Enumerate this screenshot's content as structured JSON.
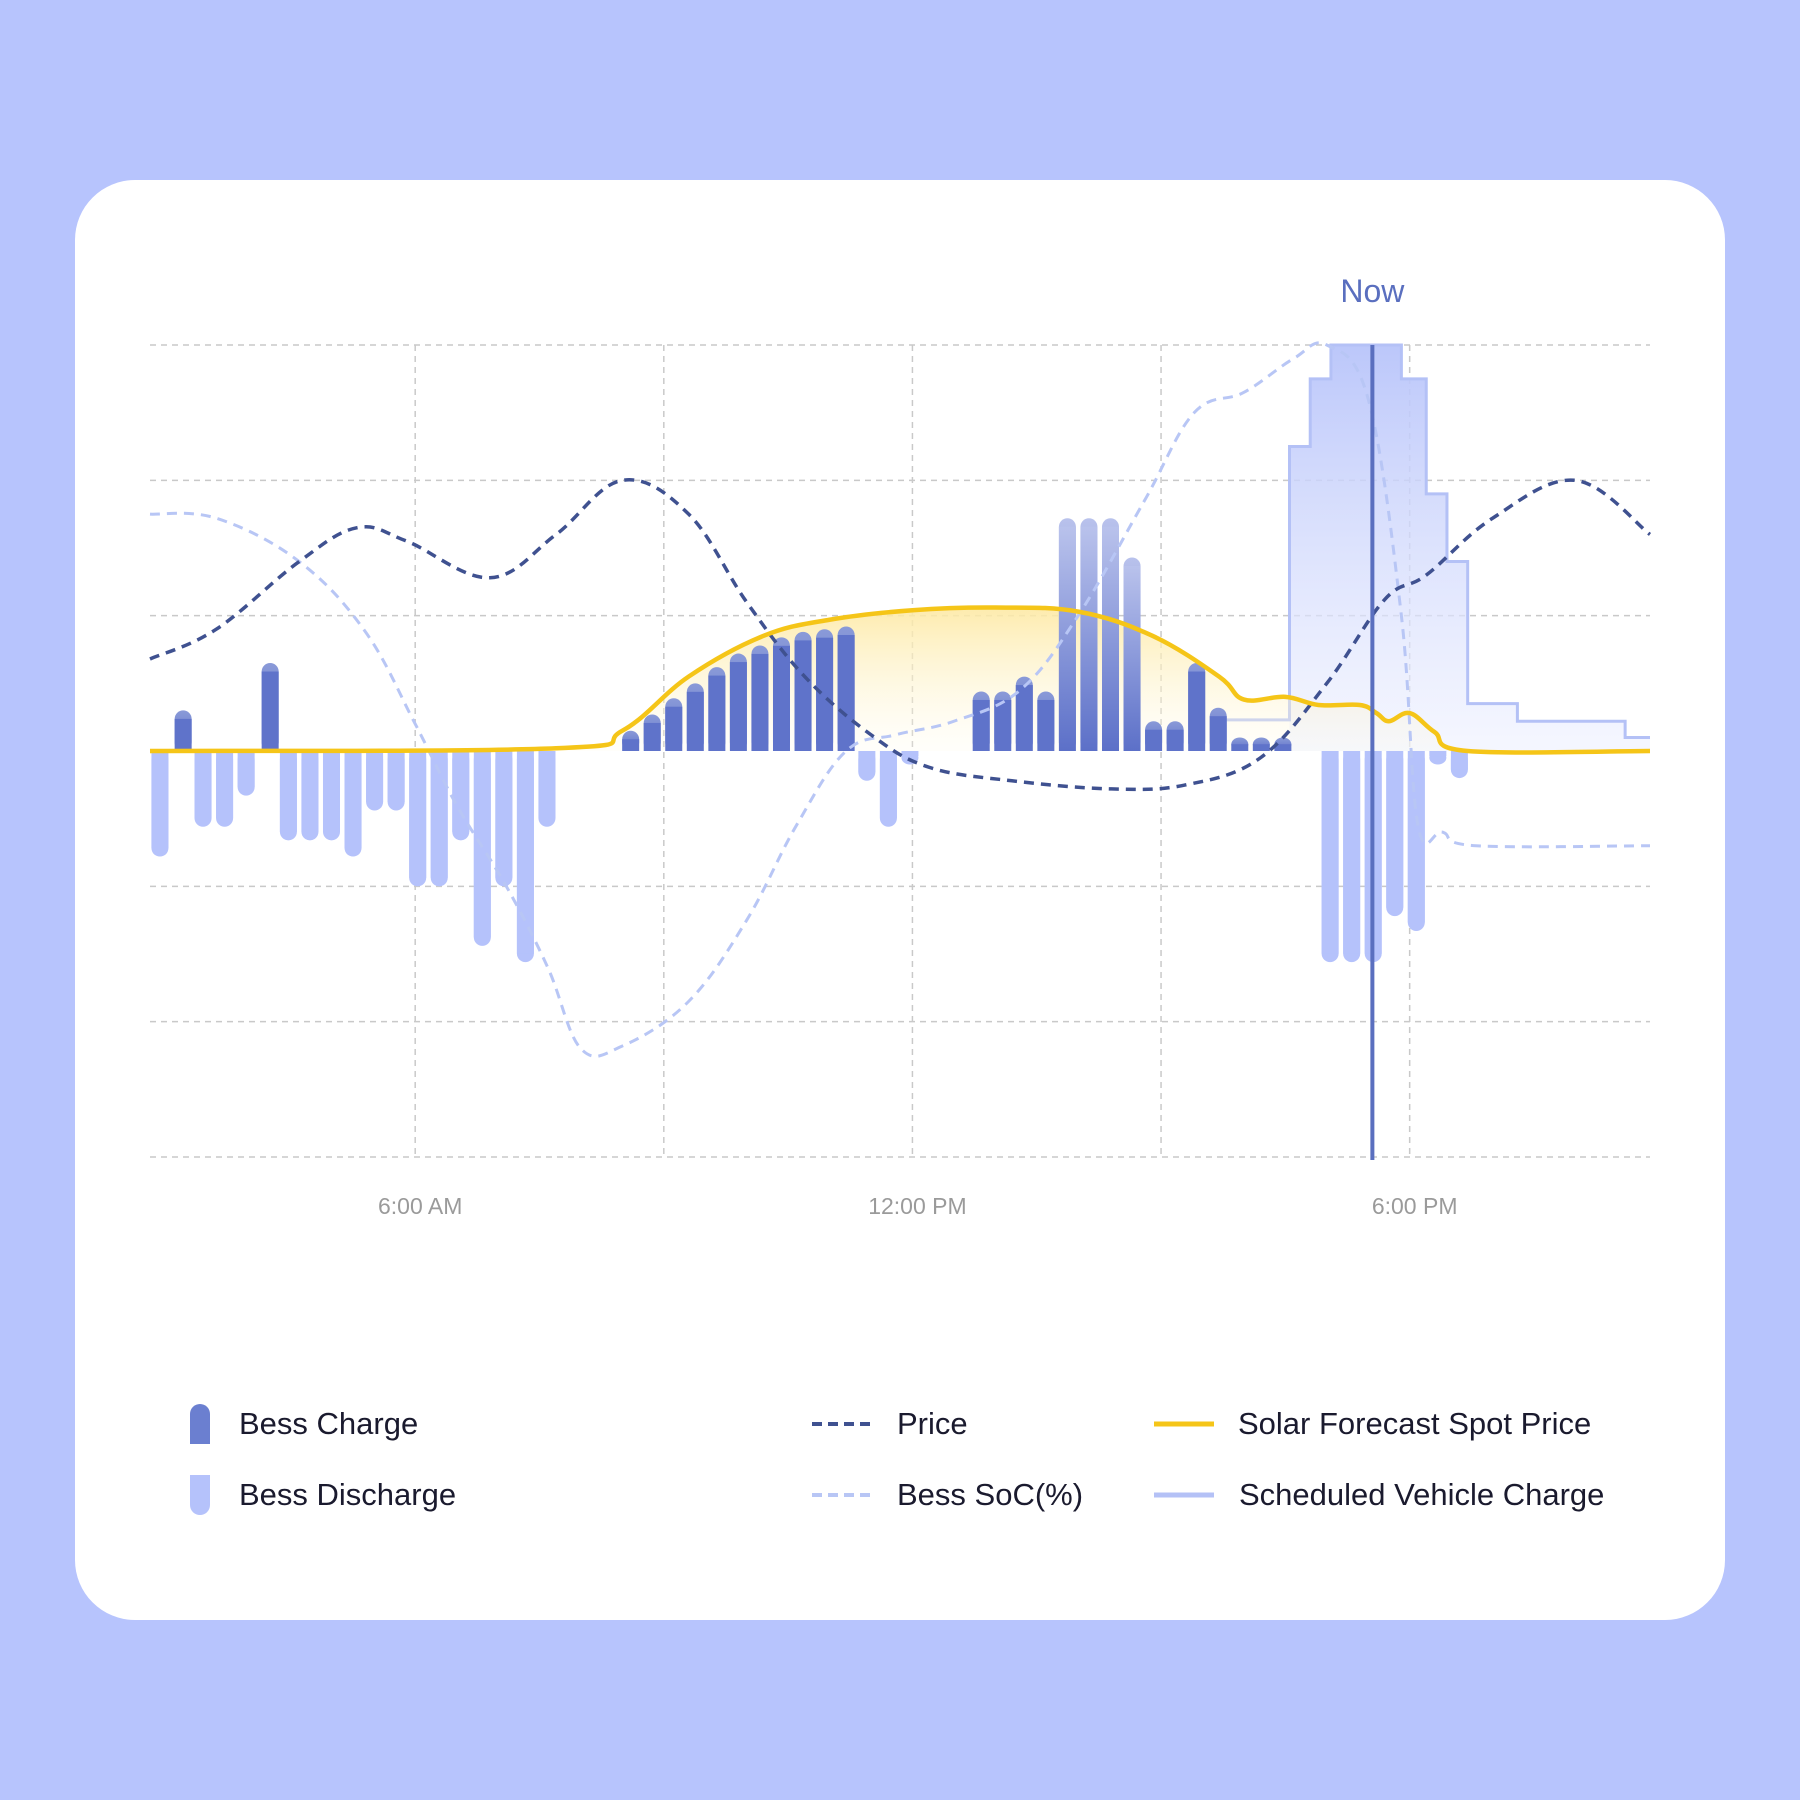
{
  "colors": {
    "background": "#b7c4fd",
    "card": "#ffffff",
    "charge": "#6b7fd0",
    "discharge": "#b5c2fb",
    "price": "#3f5190",
    "soc": "#b8c6f5",
    "solar": "#f5c518",
    "vehicle": "#b4c1f6",
    "now": "#5a6fbf"
  },
  "chart_data": {
    "type": "bar",
    "now_label": "Now",
    "now_x": 17.55,
    "x_ticks": [
      {
        "x": 6,
        "label": "6:00 AM"
      },
      {
        "x": 12,
        "label": "12:00 PM"
      },
      {
        "x": 18,
        "label": "6:00 PM"
      }
    ],
    "xlim": [
      2.8,
      20.9
    ],
    "ylim": [
      -3,
      3
    ],
    "grid": true,
    "bess_charge": {
      "name": "Bess Charge",
      "x": [
        3.2,
        4.25,
        8.6,
        8.86,
        9.12,
        9.38,
        9.64,
        9.9,
        10.16,
        10.42,
        10.68,
        10.94,
        11.2,
        12.83,
        13.09,
        13.35,
        13.61,
        13.87,
        14.13,
        14.39,
        14.65,
        14.91,
        15.17,
        15.43,
        15.69,
        15.95,
        16.21,
        16.47
      ],
      "values": [
        0.3,
        0.65,
        0.15,
        0.27,
        0.39,
        0.5,
        0.62,
        0.72,
        0.78,
        0.84,
        0.88,
        0.9,
        0.92,
        0.44,
        0.44,
        0.55,
        0.44,
        1.72,
        1.72,
        1.72,
        1.43,
        0.22,
        0.22,
        0.65,
        0.32,
        0.1,
        0.1,
        0.1
      ]
    },
    "bess_discharge": {
      "name": "Bess Discharge",
      "x": [
        2.92,
        3.44,
        3.7,
        3.96,
        4.47,
        4.73,
        4.99,
        5.25,
        5.51,
        5.77,
        6.03,
        6.29,
        6.55,
        6.81,
        7.07,
        7.33,
        7.59,
        11.45,
        11.71,
        11.97,
        17.04,
        17.3,
        17.56,
        17.82,
        18.08,
        18.34,
        18.6
      ],
      "values": [
        -0.78,
        -0.56,
        -0.56,
        -0.33,
        -0.66,
        -0.66,
        -0.66,
        -0.78,
        -0.44,
        -0.44,
        -1.0,
        -1.0,
        -0.66,
        -1.44,
        -1.0,
        -1.56,
        -0.56,
        -0.22,
        -0.56,
        -0.1,
        -1.56,
        -1.56,
        -1.56,
        -1.22,
        -1.33,
        -0.1,
        -0.2
      ]
    },
    "price": {
      "name": "Price",
      "points": [
        [
          2.8,
          0.68
        ],
        [
          3.6,
          0.9
        ],
        [
          4.6,
          1.4
        ],
        [
          5.3,
          1.65
        ],
        [
          5.9,
          1.55
        ],
        [
          6.9,
          1.28
        ],
        [
          7.7,
          1.6
        ],
        [
          8.5,
          2.0
        ],
        [
          9.3,
          1.75
        ],
        [
          10.0,
          1.1
        ],
        [
          10.7,
          0.55
        ],
        [
          11.5,
          0.12
        ],
        [
          12.2,
          -0.12
        ],
        [
          13.2,
          -0.22
        ],
        [
          14.4,
          -0.28
        ],
        [
          15.3,
          -0.25
        ],
        [
          16.2,
          -0.05
        ],
        [
          17.0,
          0.5
        ],
        [
          17.7,
          1.12
        ],
        [
          18.2,
          1.3
        ],
        [
          19.0,
          1.72
        ],
        [
          20.0,
          2.0
        ],
        [
          20.9,
          1.6
        ]
      ]
    },
    "soc": {
      "name": "Bess SoC(%)",
      "points": [
        [
          2.8,
          1.75
        ],
        [
          3.6,
          1.72
        ],
        [
          4.6,
          1.4
        ],
        [
          5.4,
          0.88
        ],
        [
          6.0,
          0.2
        ],
        [
          6.5,
          -0.4
        ],
        [
          7.1,
          -1.0
        ],
        [
          7.6,
          -1.6
        ],
        [
          8.0,
          -2.2
        ],
        [
          8.5,
          -2.18
        ],
        [
          9.3,
          -1.85
        ],
        [
          10.0,
          -1.25
        ],
        [
          10.6,
          -0.55
        ],
        [
          11.2,
          0.0
        ],
        [
          11.8,
          0.12
        ],
        [
          12.5,
          0.22
        ],
        [
          13.3,
          0.45
        ],
        [
          14.0,
          1.0
        ],
        [
          14.8,
          1.85
        ],
        [
          15.4,
          2.5
        ],
        [
          16.0,
          2.65
        ],
        [
          16.6,
          2.9
        ],
        [
          17.0,
          3.0
        ],
        [
          17.5,
          2.6
        ],
        [
          17.9,
          1.0
        ],
        [
          18.1,
          -0.55
        ],
        [
          18.4,
          -0.6
        ],
        [
          18.8,
          -0.7
        ],
        [
          20.9,
          -0.7
        ]
      ]
    },
    "solar": {
      "name": "Solar Forecast Spot Price",
      "points": [
        [
          2.8,
          0.0
        ],
        [
          7.7,
          0.02
        ],
        [
          8.5,
          0.15
        ],
        [
          9.3,
          0.55
        ],
        [
          10.2,
          0.85
        ],
        [
          11.0,
          0.97
        ],
        [
          12.0,
          1.04
        ],
        [
          13.0,
          1.06
        ],
        [
          14.0,
          1.03
        ],
        [
          14.9,
          0.85
        ],
        [
          15.7,
          0.55
        ],
        [
          16.0,
          0.38
        ],
        [
          16.5,
          0.4
        ],
        [
          16.9,
          0.34
        ],
        [
          17.4,
          0.34
        ],
        [
          17.6,
          0.28
        ],
        [
          17.75,
          0.22
        ],
        [
          18.0,
          0.28
        ],
        [
          18.3,
          0.14
        ],
        [
          18.7,
          0.0
        ],
        [
          20.9,
          0.0
        ]
      ]
    },
    "vehicle": {
      "name": "Scheduled Vehicle Charge",
      "steps": [
        [
          15.6,
          0.23
        ],
        [
          16.55,
          2.25
        ],
        [
          16.8,
          2.75
        ],
        [
          17.05,
          3.0
        ],
        [
          17.9,
          2.75
        ],
        [
          18.2,
          1.9
        ],
        [
          18.45,
          1.4
        ],
        [
          18.7,
          0.35
        ],
        [
          19.3,
          0.22
        ],
        [
          20.6,
          0.1
        ],
        [
          20.9,
          0.1
        ]
      ]
    }
  },
  "legend": {
    "bess_charge": "Bess Charge",
    "bess_discharge": "Bess Discharge",
    "price": "Price",
    "soc": "Bess SoC(%)",
    "solar": "Solar Forecast Spot Price",
    "vehicle": "Scheduled Vehicle Charge"
  }
}
